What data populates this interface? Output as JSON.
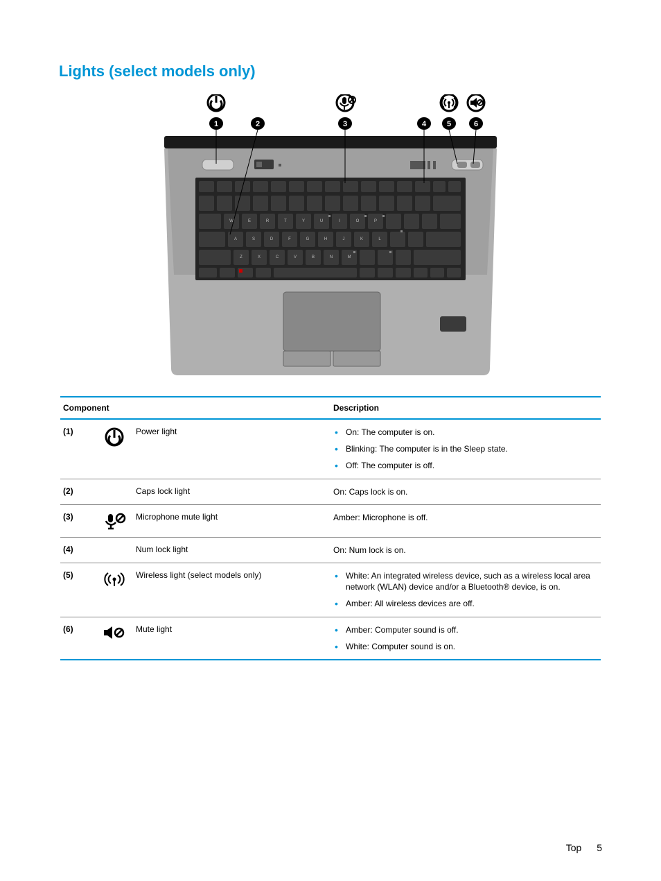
{
  "section": {
    "title": "Lights (select models only)",
    "title_color": "#0096d6"
  },
  "table": {
    "header_border_color": "#0096d6",
    "row_border_color": "#888888",
    "bullet_color": "#0096d6",
    "headers": {
      "component": "Component",
      "description": "Description"
    },
    "rows": [
      {
        "num": "(1)",
        "icon": "power",
        "name": "Power light",
        "desc_type": "list",
        "items": [
          "On: The computer is on.",
          "Blinking: The computer is in the Sleep state.",
          "Off: The computer is off."
        ]
      },
      {
        "num": "(2)",
        "icon": "",
        "name": "Caps lock light",
        "desc_type": "plain",
        "text": "On: Caps lock is on."
      },
      {
        "num": "(3)",
        "icon": "mic-mute",
        "name": "Microphone mute light",
        "desc_type": "plain",
        "text": "Amber: Microphone is off."
      },
      {
        "num": "(4)",
        "icon": "",
        "name": "Num lock light",
        "desc_type": "plain",
        "text": "On: Num lock is on."
      },
      {
        "num": "(5)",
        "icon": "wireless",
        "name": "Wireless light (select models only)",
        "desc_type": "list",
        "items": [
          "White: An integrated wireless device, such as a wireless local area network (WLAN) device and/or a Bluetooth® device, is on.",
          "Amber: All wireless devices are off."
        ]
      },
      {
        "num": "(6)",
        "icon": "mute",
        "name": "Mute light",
        "desc_type": "list",
        "items": [
          "Amber: Computer sound is off.",
          "White: Computer sound is on."
        ]
      }
    ]
  },
  "footer": {
    "section_label": "Top",
    "page_number": "5"
  },
  "laptop": {
    "body_color": "#a8a8a8",
    "keyboard_bg": "#2a2a2a",
    "key_color": "#3a3a3a",
    "key_label_color": "#cccccc",
    "touchpad_color": "#7a7a7a",
    "callout_bg": "#000000",
    "callout_fg": "#ffffff",
    "line_color": "#000000",
    "hinge_color": "#1a1a1a",
    "trackpoint_color": "#cc0000"
  }
}
